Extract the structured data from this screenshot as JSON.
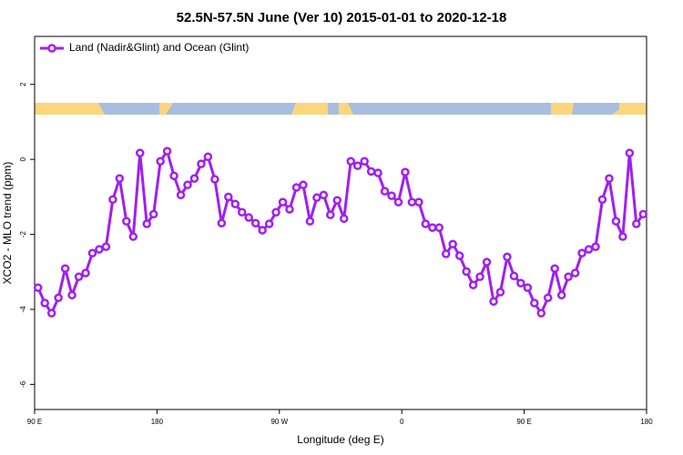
{
  "chart_data": {
    "type": "line",
    "title": "52.5N-57.5N June (Ver 10)   2015-01-01 to 2020-12-18",
    "x_label": "Longitude (deg E)",
    "y_label": "XCO2 - MLO trend (ppm)",
    "x": [
      92.5,
      97.5,
      102.5,
      107.5,
      112.5,
      117.5,
      122.5,
      127.5,
      132.5,
      137.5,
      142.5,
      147.5,
      152.5,
      157.5,
      162.5,
      167.5,
      172.5,
      177.5,
      182.5,
      187.5,
      192.5,
      197.5,
      202.5,
      207.5,
      212.5,
      217.5,
      222.5,
      227.5,
      232.5,
      237.5,
      242.5,
      247.5,
      252.5,
      257.5,
      262.5,
      267.5,
      272.5,
      277.5,
      282.5,
      287.5,
      292.5,
      297.5,
      302.5,
      307.5,
      312.5,
      317.5,
      322.5,
      327.5,
      332.5,
      337.5,
      342.5,
      347.5,
      352.5,
      357.5,
      362.5,
      367.5,
      372.5,
      377.5,
      382.5,
      387.5,
      392.5,
      397.5,
      402.5,
      407.5,
      412.5,
      417.5,
      422.5,
      427.5,
      432.5,
      437.5,
      442.5,
      447.5,
      452.5,
      457.5,
      462.5,
      467.5,
      472.5,
      477.5,
      482.5,
      487.5,
      492.5,
      497.5,
      502.5,
      507.5,
      512.5,
      517.5,
      522.5,
      527.5,
      532.5,
      537.5
    ],
    "series": [
      {
        "name": "Land (Nadir&Glint) and Ocean (Glint)",
        "color": "#a020f0",
        "values": [
          -3.42,
          -3.83,
          -4.1,
          -3.69,
          -2.91,
          -3.62,
          -3.13,
          -3.03,
          -2.5,
          -2.4,
          -2.33,
          -1.07,
          -0.51,
          -1.65,
          -2.06,
          0.17,
          -1.72,
          -1.46,
          -0.05,
          0.22,
          -0.44,
          -0.95,
          -0.68,
          -0.51,
          -0.12,
          0.07,
          -0.53,
          -1.7,
          -1.0,
          -1.19,
          -1.41,
          -1.55,
          -1.7,
          -1.89,
          -1.72,
          -1.41,
          -1.14,
          -1.33,
          -0.75,
          -0.68,
          -1.65,
          -1.02,
          -0.95,
          -1.48,
          -1.09,
          -1.58,
          -0.05,
          -0.17,
          -0.05,
          -0.32,
          -0.36,
          -0.85,
          -0.97,
          -1.14,
          -0.34,
          -1.14,
          -1.14,
          -1.72,
          -1.82,
          -1.82,
          -2.52,
          -2.26,
          -2.57,
          -2.99,
          -3.35,
          -3.13,
          -2.74,
          -3.79,
          -3.54,
          -2.6,
          -3.11,
          -3.3,
          -3.42,
          -3.83,
          -4.1,
          -3.69,
          -2.91,
          -3.62,
          -3.13,
          -3.03,
          -2.5,
          -2.4,
          -2.33,
          -1.07,
          -0.51,
          -1.65,
          -2.06,
          0.17,
          -1.72,
          -1.46
        ]
      }
    ],
    "xlim": [
      90,
      540
    ],
    "xticks": [
      {
        "value": 90,
        "label": "90 E"
      },
      180,
      {
        "value": 270,
        "label": "90 W"
      },
      {
        "value": 360,
        "label": "0"
      },
      {
        "value": 450,
        "label": "90 E"
      },
      {
        "value": 540,
        "label": "180"
      }
    ],
    "ylim": [
      -6.67,
      3.28
    ],
    "yticks": [
      -6,
      -4,
      -2,
      0,
      2
    ],
    "legend": "top-left",
    "grid": false
  }
}
